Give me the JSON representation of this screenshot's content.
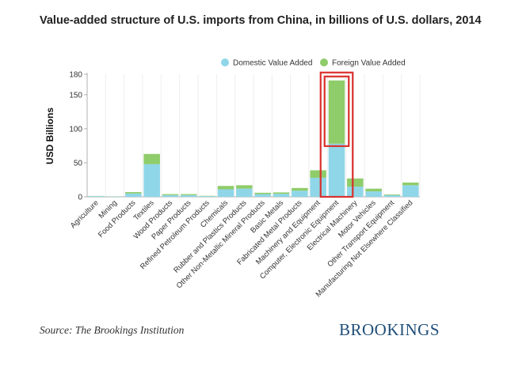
{
  "header": {
    "title": "Value-added structure of U.S. imports from China, in billions of U.S. dollars, 2014"
  },
  "footer": {
    "source": "Source: The Brookings Institution",
    "brand": "BROOKINGS"
  },
  "colors": {
    "domestic": "#8fd6e8",
    "foreign": "#8fcc6a",
    "highlight": "#d9302c",
    "brand": "#1f4e79",
    "axis": "#b0b0b0",
    "grid": "#eeeeee"
  },
  "chart_data": {
    "type": "bar",
    "stacked": true,
    "title": "",
    "xlabel": "",
    "ylabel": "USD Billions",
    "ylim": [
      0,
      180
    ],
    "yticks": [
      0,
      50,
      100,
      150,
      180
    ],
    "grid": "vertical",
    "legend": "top-right",
    "categories": [
      "Agriculture",
      "Mining",
      "Food Products",
      "Textiles",
      "Wood Products",
      "Paper Products",
      "Refined Petroleum Products",
      "Chemicals",
      "Rubber and Plastics Products",
      "Other Non-Metallic Mineral Products",
      "Basic Metals",
      "Fabricated Metal Products",
      "Machinery and Equipment",
      "Computer, Electronic Equipment",
      "Electrical Machinery",
      "Motor Vehicles",
      "Other Transport Equipment",
      "Manufacturing Not Elsewhere Classified"
    ],
    "series": [
      {
        "name": "Domestic Value Added",
        "color": "#8fd6e8",
        "values": [
          1,
          0.5,
          5,
          48,
          2.5,
          2.5,
          1,
          11,
          12,
          4,
          4.5,
          9,
          28,
          78,
          15,
          8,
          2.5,
          17
        ]
      },
      {
        "name": "Foreign Value Added",
        "color": "#8fcc6a",
        "values": [
          0.3,
          0.2,
          2,
          15,
          1.5,
          1.5,
          0.5,
          5,
          5,
          2,
          2,
          4,
          11,
          93,
          12,
          4,
          1,
          4
        ]
      }
    ],
    "highlight": {
      "category": "Computer, Electronic Equipment",
      "style": "red outline rectangles"
    }
  }
}
